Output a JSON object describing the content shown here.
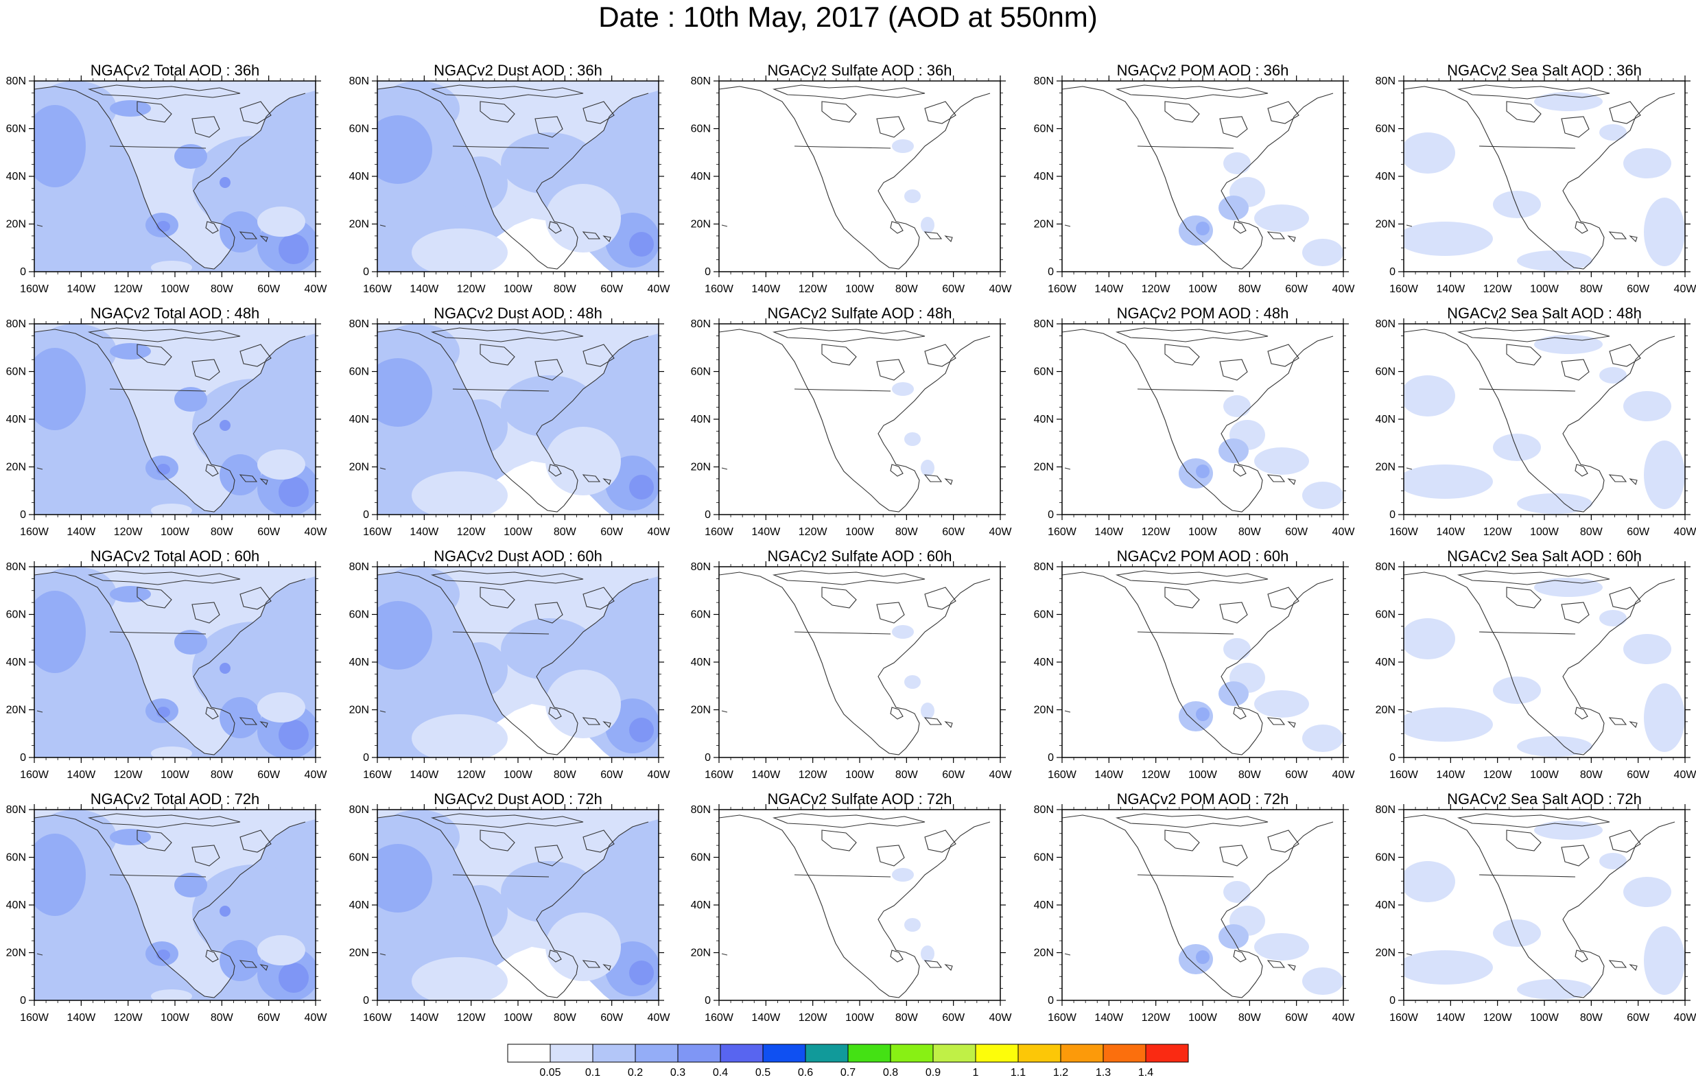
{
  "title": "Date : 10th May, 2017 (AOD at 550nm)",
  "axes": {
    "lat_labels": [
      "80N",
      "60N",
      "40N",
      "20N",
      "0"
    ],
    "lon_labels": [
      "160W",
      "140W",
      "120W",
      "100W",
      "80W",
      "60W",
      "40W"
    ]
  },
  "colorbar": {
    "labels": [
      "0.05",
      "0.1",
      "0.2",
      "0.3",
      "0.4",
      "0.5",
      "0.6",
      "0.7",
      "0.8",
      "0.9",
      "1",
      "1.1",
      "1.2",
      "1.3",
      "1.4"
    ],
    "colors": [
      "#ffffff",
      "#d7e1fb",
      "#b3c6f8",
      "#94adf7",
      "#7f96f5",
      "#5865f0",
      "#0f50f2",
      "#119a9a",
      "#44e114",
      "#88f014",
      "#c0f046",
      "#fdfd0a",
      "#fcc707",
      "#fc9a0a",
      "#fb6f0d",
      "#fa2a12"
    ]
  },
  "panels": [
    {
      "title": "NGACv2 Total AOD : 36h",
      "kind": "total"
    },
    {
      "title": "NGACv2 Dust AOD : 36h",
      "kind": "dust"
    },
    {
      "title": "NGACv2 Sulfate AOD : 36h",
      "kind": "sulfate"
    },
    {
      "title": "NGACv2 POM AOD : 36h",
      "kind": "pom"
    },
    {
      "title": "NGACv2 Sea Salt AOD : 36h",
      "kind": "seasalt"
    },
    {
      "title": "NGACv2 Total AOD : 48h",
      "kind": "total"
    },
    {
      "title": "NGACv2 Dust AOD : 48h",
      "kind": "dust"
    },
    {
      "title": "NGACv2 Sulfate AOD : 48h",
      "kind": "sulfate"
    },
    {
      "title": "NGACv2 POM AOD : 48h",
      "kind": "pom"
    },
    {
      "title": "NGACv2 Sea Salt AOD : 48h",
      "kind": "seasalt"
    },
    {
      "title": "NGACv2 Total AOD : 60h",
      "kind": "total"
    },
    {
      "title": "NGACv2 Dust AOD : 60h",
      "kind": "dust"
    },
    {
      "title": "NGACv2 Sulfate AOD : 60h",
      "kind": "sulfate"
    },
    {
      "title": "NGACv2 POM AOD : 60h",
      "kind": "pom"
    },
    {
      "title": "NGACv2 Sea Salt AOD : 60h",
      "kind": "seasalt"
    },
    {
      "title": "NGACv2 Total AOD : 72h",
      "kind": "total"
    },
    {
      "title": "NGACv2 Dust AOD : 72h",
      "kind": "dust"
    },
    {
      "title": "NGACv2 Sulfate AOD : 72h",
      "kind": "sulfate"
    },
    {
      "title": "NGACv2 POM AOD : 72h",
      "kind": "pom"
    },
    {
      "title": "NGACv2 Sea Salt  AOD : 72h",
      "kind": "seasalt"
    }
  ]
}
